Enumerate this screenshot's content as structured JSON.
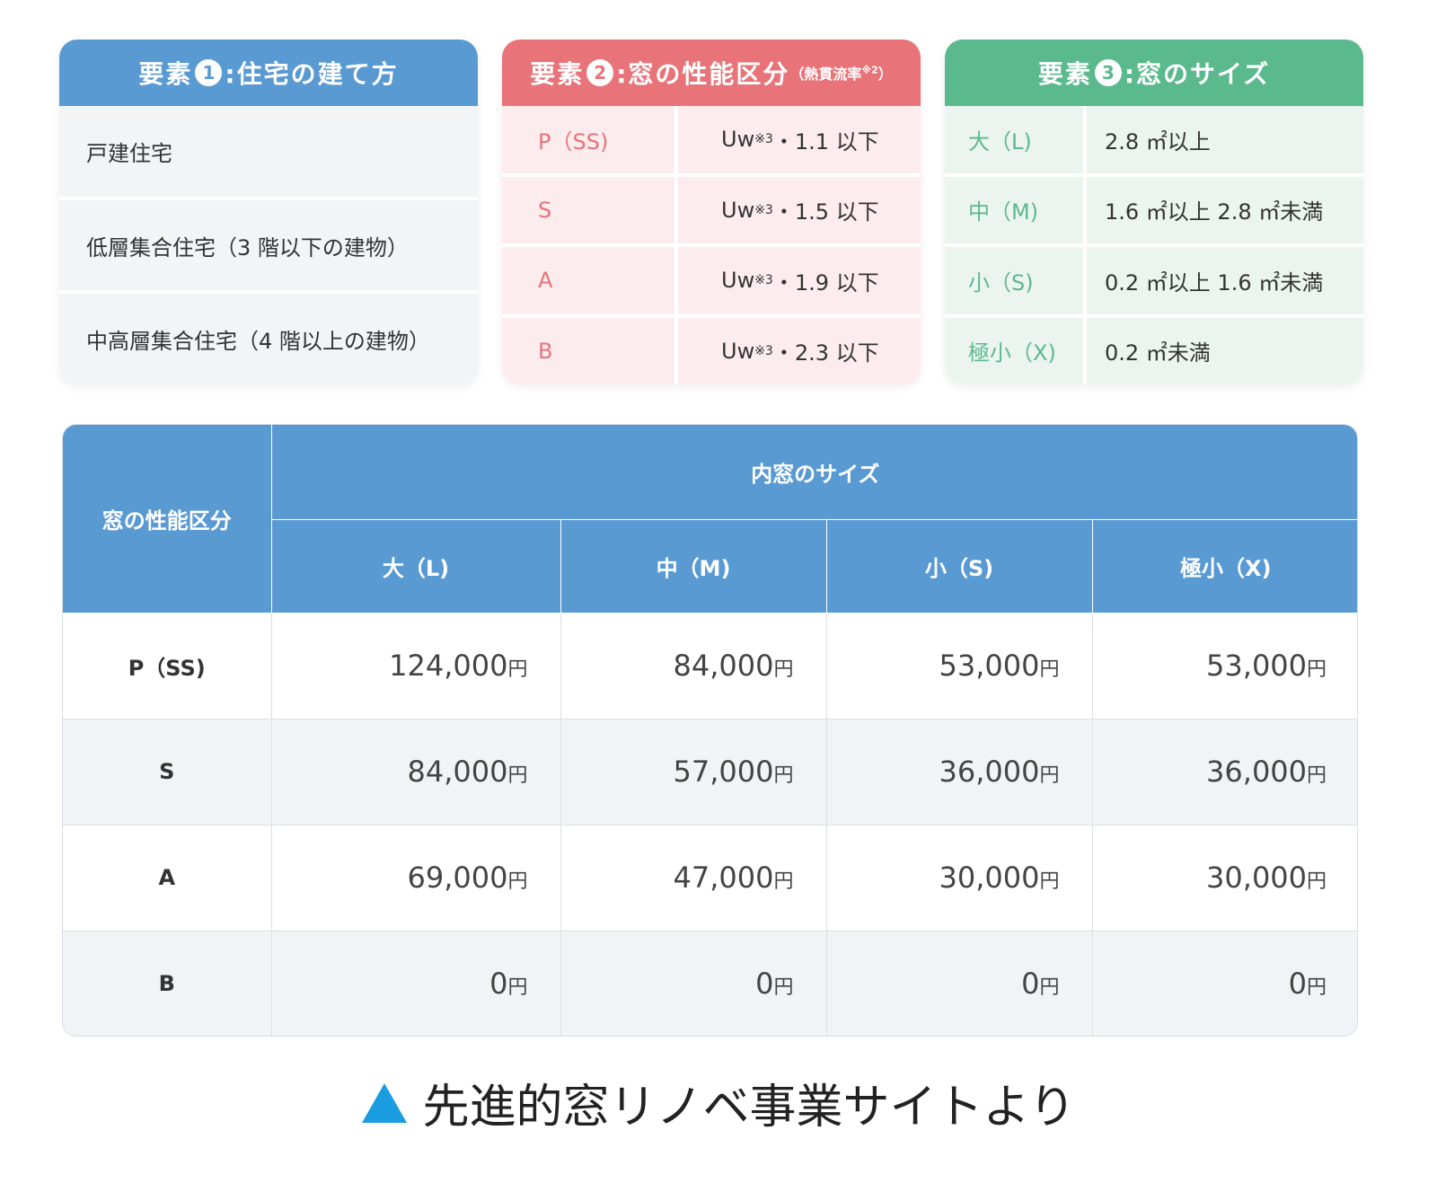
{
  "colors": {
    "element1": "#5a9ad3",
    "element2": "#e87378",
    "element3": "#5bb98e",
    "table_header": "#5a9ad3",
    "caption_triangle": "#1a9ce0"
  },
  "element1": {
    "title_prefix": "要素",
    "number": "1",
    "title_suffix": ":住宅の建て方",
    "rows": [
      "戸建住宅",
      "低層集合住宅（3 階以下の建物）",
      "中高層集合住宅（4 階以上の建物）"
    ]
  },
  "element2": {
    "title_prefix": "要素",
    "number": "2",
    "title_suffix": ":窓の性能区分",
    "title_note": "（熱貫流率",
    "title_note_sup": "※2",
    "title_note_end": "）",
    "rows": [
      {
        "label": "P（SS)",
        "value": "Uw",
        "sup": "※3",
        "value_rest": "・1.1 以下"
      },
      {
        "label": "S",
        "value": "Uw",
        "sup": "※3",
        "value_rest": "・1.5 以下"
      },
      {
        "label": "A",
        "value": "Uw",
        "sup": "※3",
        "value_rest": "・1.9 以下"
      },
      {
        "label": "B",
        "value": "Uw",
        "sup": "※3",
        "value_rest": "・2.3 以下"
      }
    ]
  },
  "element3": {
    "title_prefix": "要素",
    "number": "3",
    "title_suffix": ":窓のサイズ",
    "rows": [
      {
        "label": "大（L)",
        "value": "2.8 ㎡以上"
      },
      {
        "label": "中（M)",
        "value": "1.6 ㎡以上 2.8 ㎡未満"
      },
      {
        "label": "小（S)",
        "value": "0.2 ㎡以上 1.6 ㎡未満"
      },
      {
        "label": "極小（X)",
        "value": "0.2 ㎡未満"
      }
    ]
  },
  "table": {
    "row_header": "窓の性能区分",
    "group_header": "内窓のサイズ",
    "columns": [
      "大（L)",
      "中（M)",
      "小（S)",
      "極小（X)"
    ],
    "unit": "円",
    "rows": [
      {
        "label": "P（SS)",
        "values": [
          "124,000",
          "84,000",
          "53,000",
          "53,000"
        ]
      },
      {
        "label": "S",
        "values": [
          "84,000",
          "57,000",
          "36,000",
          "36,000"
        ]
      },
      {
        "label": "A",
        "values": [
          "69,000",
          "47,000",
          "30,000",
          "30,000"
        ]
      },
      {
        "label": "B",
        "values": [
          "0",
          "0",
          "0",
          "0"
        ]
      }
    ]
  },
  "caption": {
    "icon": "triangle-up-icon",
    "text": "先進的窓リノベ事業サイトより"
  }
}
